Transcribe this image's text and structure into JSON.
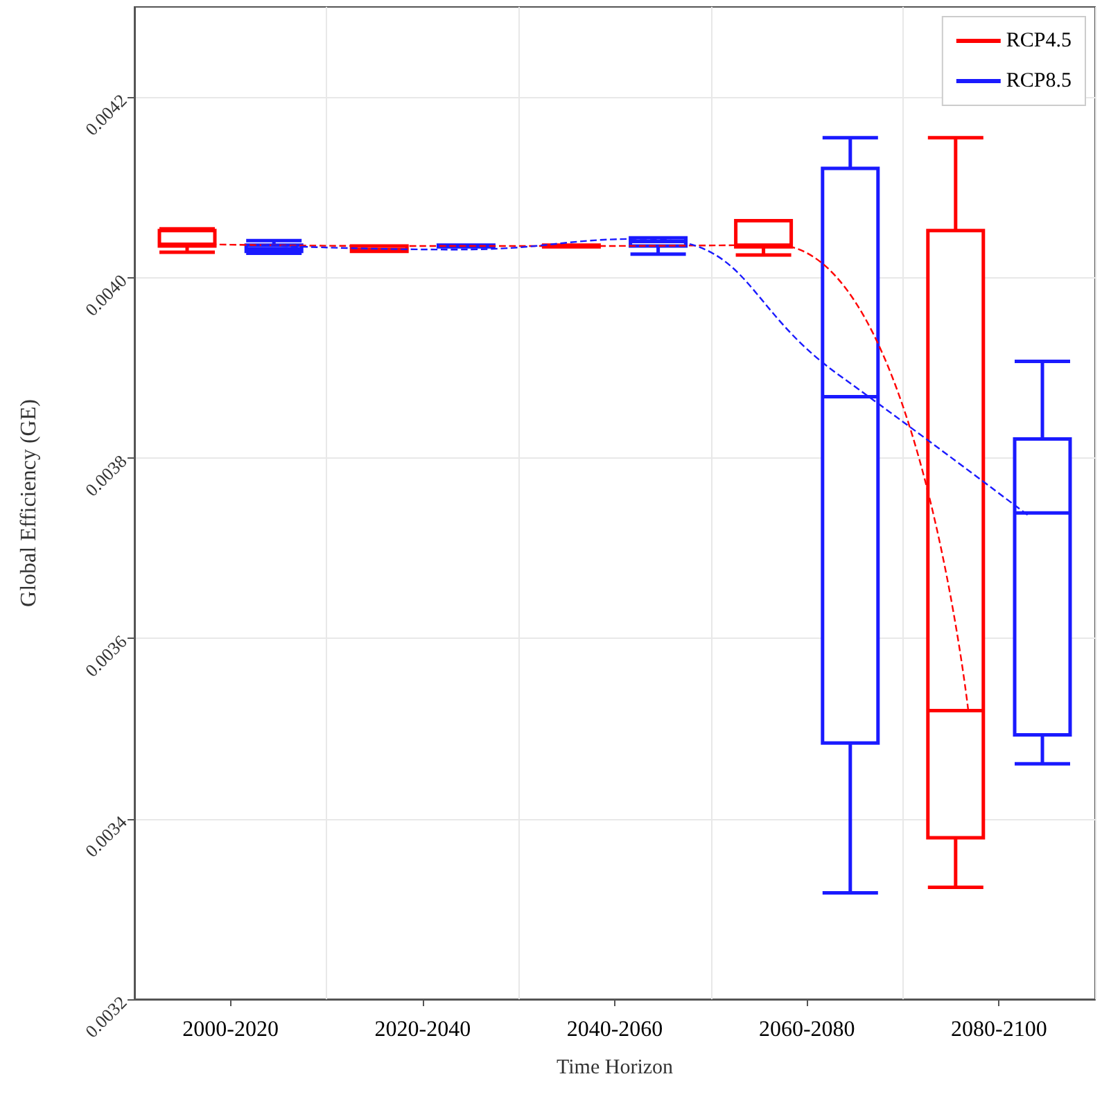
{
  "chart_data": {
    "type": "box",
    "xlabel": "Time Horizon",
    "ylabel": "Global Efficiency (GE)",
    "categories": [
      "2000-2020",
      "2020-2040",
      "2040-2060",
      "2060-2080",
      "2080-2100"
    ],
    "ylim": [
      0.0032,
      0.0043
    ],
    "yticks": [
      0.0032,
      0.0034,
      0.0036,
      0.0038,
      {
        "value": 0.004,
        "label": "0.0040"
      },
      0.0042
    ],
    "grid": true,
    "legend": "top right",
    "series": [
      {
        "name": "RCP4.5",
        "color": "#ff0000",
        "boxes": [
          {
            "low": 0.004028,
            "q1": 0.004035,
            "median": 0.004037,
            "q3": 0.004052,
            "high": 0.004054
          },
          {
            "low": 0.004029,
            "q1": 0.004029,
            "median": 0.004031,
            "q3": 0.004035,
            "high": 0.004035
          },
          {
            "low": 0.004034,
            "q1": 0.004034,
            "median": 0.004035,
            "q3": 0.004036,
            "high": 0.004036
          },
          {
            "low": 0.004025,
            "q1": 0.004034,
            "median": 0.004036,
            "q3": 0.004063,
            "high": 0.004063
          },
          {
            "low": 0.003324,
            "q1": 0.003379,
            "median": 0.00352,
            "q3": 0.004052,
            "high": 0.004155
          }
        ]
      },
      {
        "name": "RCP8.5",
        "color": "#1a1aff",
        "boxes": [
          {
            "low": 0.004027,
            "q1": 0.004029,
            "median": 0.004032,
            "q3": 0.004036,
            "high": 0.004041
          },
          {
            "low": 0.004034,
            "q1": 0.004034,
            "median": 0.004035,
            "q3": 0.004036,
            "high": 0.004036
          },
          {
            "low": 0.004026,
            "q1": 0.004035,
            "median": 0.00404,
            "q3": 0.004044,
            "high": 0.004044
          },
          {
            "low": 0.003318,
            "q1": 0.003484,
            "median": 0.003868,
            "q3": 0.004121,
            "high": 0.004155
          },
          {
            "low": 0.003461,
            "q1": 0.003493,
            "median": 0.003739,
            "q3": 0.003821,
            "high": 0.003907
          }
        ]
      },
      {
        "type": "line",
        "color": "#ff0000",
        "line_style": "dashed",
        "marker": "none",
        "values": [
          0.004037,
          0.004035,
          0.004035,
          0.004036,
          0.00352
        ]
      },
      {
        "type": "line",
        "color": "#1a1aff",
        "line_style": "dashed",
        "marker": "none",
        "values": [
          0.004036,
          0.004031,
          0.004043,
          0.003893,
          0.003735
        ]
      }
    ]
  }
}
